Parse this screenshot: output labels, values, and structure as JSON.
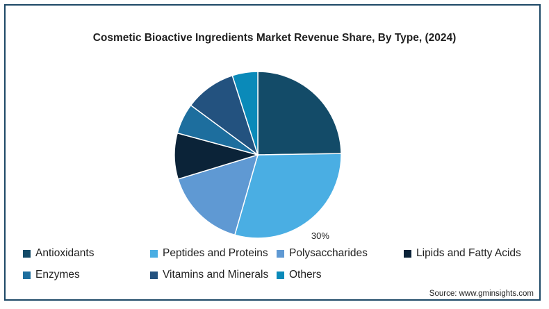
{
  "chart_data": {
    "type": "pie",
    "title": "Cosmetic Bioactive Ingredients Market Revenue Share, By Type, (2024)",
    "slices": [
      {
        "name": "Antioxidants",
        "value": 25,
        "color": "#134b68"
      },
      {
        "name": "Peptides and Proteins",
        "value": 30,
        "color": "#4aaee3",
        "label": "30%"
      },
      {
        "name": "Polysaccharides",
        "value": 16,
        "color": "#5f99d3"
      },
      {
        "name": "Lipids and Fatty Acids",
        "value": 9,
        "color": "#0b2338"
      },
      {
        "name": "Enzymes",
        "value": 6,
        "color": "#1d6e9e"
      },
      {
        "name": "Vitamins and Minerals",
        "value": 10,
        "color": "#23527f"
      },
      {
        "name": "Others",
        "value": 5,
        "color": "#0a8ab9"
      }
    ],
    "legend_position": "bottom"
  },
  "source": "Source: www.gminsights.com"
}
